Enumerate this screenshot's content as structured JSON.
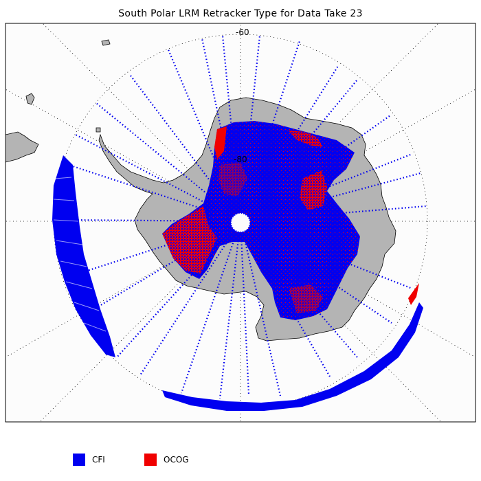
{
  "title": "South Polar LRM Retracker Type for Data Take 23",
  "map": {
    "projection": "south-polar-stereographic",
    "latitude_labels": [
      "-60",
      "-80"
    ],
    "frame_color": "#000000",
    "ocean_color": "#fcfcfc",
    "land_color": "#b4b4b4",
    "graticule_color": "#000000"
  },
  "legend": {
    "items": [
      {
        "label": "CFI",
        "color": "#0000f0"
      },
      {
        "label": "OCOG",
        "color": "#f00000"
      }
    ]
  }
}
